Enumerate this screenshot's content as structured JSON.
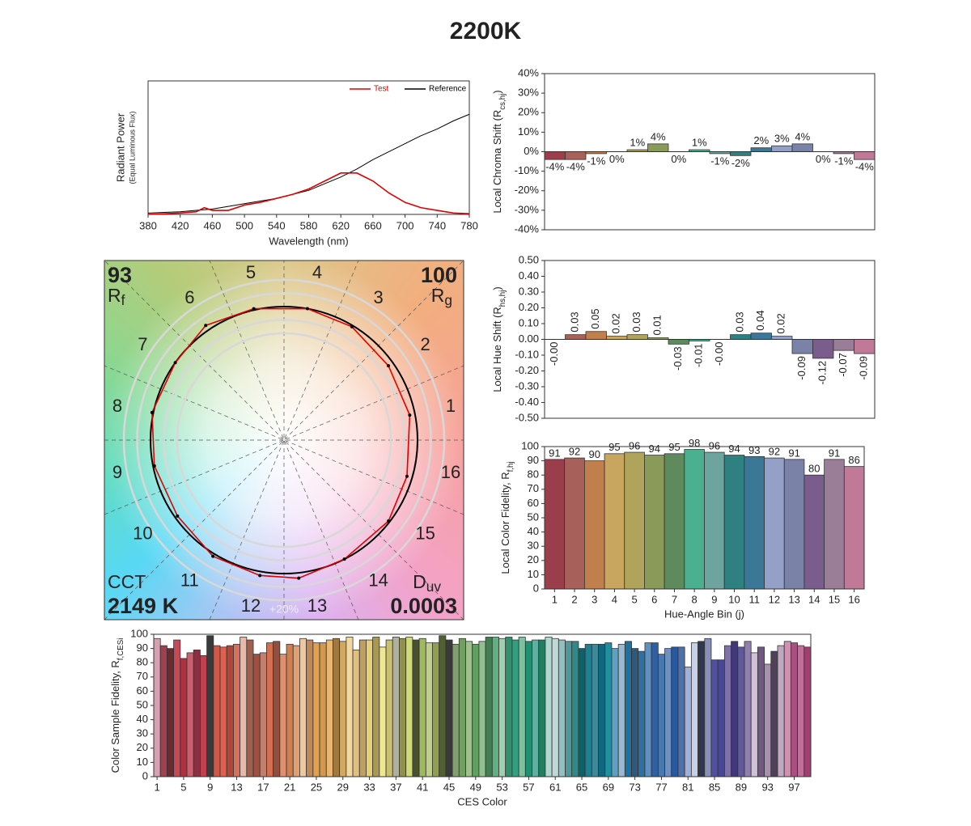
{
  "title": "2200K",
  "chart_data": [
    {
      "type": "line",
      "xlabel": "Wavelength (nm)",
      "ylabel": [
        "Radiant Power",
        "(Equal Luminous Flux)"
      ],
      "x": [
        380,
        400,
        420,
        440,
        450,
        460,
        480,
        500,
        520,
        540,
        560,
        580,
        600,
        620,
        640,
        660,
        680,
        700,
        720,
        740,
        760,
        780
      ],
      "series": [
        {
          "name": "Test",
          "color": "#e00000",
          "values": [
            0.0,
            0.005,
            0.01,
            0.02,
            0.05,
            0.03,
            0.03,
            0.07,
            0.09,
            0.12,
            0.15,
            0.19,
            0.25,
            0.31,
            0.31,
            0.25,
            0.16,
            0.09,
            0.05,
            0.03,
            0.01,
            0.005
          ]
        },
        {
          "name": "Reference",
          "color": "#000000",
          "values": [
            0.01,
            0.015,
            0.02,
            0.03,
            0.035,
            0.04,
            0.06,
            0.08,
            0.1,
            0.12,
            0.15,
            0.18,
            0.23,
            0.28,
            0.34,
            0.41,
            0.47,
            0.53,
            0.59,
            0.64,
            0.7,
            0.75
          ]
        }
      ],
      "xlim": [
        380,
        780
      ],
      "xticks": [
        380,
        420,
        460,
        500,
        540,
        580,
        620,
        660,
        700,
        740,
        780
      ],
      "ylim": [
        0,
        1
      ]
    },
    {
      "type": "bar",
      "ylabel": {
        "text": "Local Chroma Shift (R",
        "sub": "cs,hj",
        "end": ")"
      },
      "values": [
        -4,
        -4,
        -1,
        0,
        1,
        4,
        0,
        1,
        -1,
        -2,
        2,
        3,
        4,
        0,
        -1,
        -4
      ],
      "value_labels": [
        "-4%",
        "-4%",
        "-1%",
        "0%",
        "1%",
        "4%",
        "0%",
        "1%",
        "-1%",
        "-2%",
        "2%",
        "3%",
        "4%",
        "0%",
        "-1%",
        "-4%"
      ],
      "colors": [
        "#9b3e4c",
        "#a8605a",
        "#c07f4c",
        "#c9a65f",
        "#b0a45d",
        "#8a9a58",
        "#5e8a5e",
        "#4bb08f",
        "#6da59e",
        "#2f8080",
        "#3b7898",
        "#95a0c8",
        "#7a82a8",
        "#7a5c8d",
        "#9a7e98",
        "#c07a98"
      ],
      "ylim": [
        -40,
        40
      ],
      "yticks": [
        {
          "value": 40,
          "label": "40%"
        },
        {
          "value": 30,
          "label": "30%"
        },
        {
          "value": 20,
          "label": "20%"
        },
        {
          "value": 10,
          "label": "10%"
        },
        {
          "value": 0,
          "label": "0%"
        },
        {
          "value": -10,
          "label": "-10%"
        },
        {
          "value": -20,
          "label": "-20%"
        },
        {
          "value": -30,
          "label": "-30%"
        },
        {
          "value": -40,
          "label": "-40%"
        }
      ]
    },
    {
      "type": "bar",
      "ylabel": {
        "text": "Local Hue Shift (R",
        "sub": "hs,hj",
        "end": ")"
      },
      "values": [
        0,
        0.03,
        0.05,
        0.02,
        0.03,
        0.01,
        -0.03,
        -0.01,
        0,
        0.03,
        0.04,
        0.02,
        -0.09,
        -0.12,
        -0.07,
        -0.09
      ],
      "value_labels": [
        "-0.00",
        "0.03",
        "0.05",
        "0.02",
        "0.03",
        "0.01",
        "-0.03",
        "-0.01",
        "-0.00",
        "0.03",
        "0.04",
        "0.02",
        "-0.09",
        "-0.12",
        "-0.07",
        "-0.09"
      ],
      "colors": [
        "#9b3e4c",
        "#a8605a",
        "#c07f4c",
        "#c9a65f",
        "#b0a45d",
        "#8a9a58",
        "#5e8a5e",
        "#4bb08f",
        "#6da59e",
        "#2f8080",
        "#3b7898",
        "#95a0c8",
        "#7a82a8",
        "#7a5c8d",
        "#9a7e98",
        "#c07a98"
      ],
      "ylim": [
        -0.5,
        0.5
      ],
      "yticks": [
        {
          "value": 0.5,
          "label": "0.50"
        },
        {
          "value": 0.4,
          "label": "0.40"
        },
        {
          "value": 0.3,
          "label": "0.30"
        },
        {
          "value": 0.2,
          "label": "0.20"
        },
        {
          "value": 0.1,
          "label": "0.10"
        },
        {
          "value": 0,
          "label": "0.00"
        },
        {
          "value": -0.1,
          "label": "-0.10"
        },
        {
          "value": -0.2,
          "label": "-0.20"
        },
        {
          "value": -0.3,
          "label": "-0.30"
        },
        {
          "value": -0.4,
          "label": "-0.40"
        },
        {
          "value": -0.5,
          "label": "-0.50"
        }
      ]
    },
    {
      "type": "bar",
      "xlabel": "Hue-Angle Bin (j)",
      "ylabel": {
        "text": "Local Color Fidelity, R",
        "sub": "f,hj"
      },
      "categories": [
        "1",
        "2",
        "3",
        "4",
        "5",
        "6",
        "7",
        "8",
        "9",
        "10",
        "11",
        "12",
        "13",
        "14",
        "15",
        "16"
      ],
      "values": [
        91,
        92,
        90,
        95,
        96,
        94,
        95,
        98,
        96,
        94,
        93,
        92,
        91,
        80,
        91,
        86
      ],
      "colors": [
        "#9b3e4c",
        "#a8605a",
        "#c07f4c",
        "#c9a65f",
        "#b0a45d",
        "#8a9a58",
        "#5e8a5e",
        "#4bb08f",
        "#6da59e",
        "#2f8080",
        "#3b7898",
        "#95a0c8",
        "#7a82a8",
        "#7a5c8d",
        "#9a7e98",
        "#c07a98"
      ],
      "ylim": [
        0,
        100
      ],
      "yticks": [
        0,
        10,
        20,
        30,
        40,
        50,
        60,
        70,
        80,
        90,
        100
      ]
    },
    {
      "type": "polar",
      "categories": [
        "1",
        "2",
        "3",
        "4",
        "5",
        "6",
        "7",
        "8",
        "9",
        "10",
        "11",
        "12",
        "13",
        "14",
        "15",
        "16"
      ],
      "rf": 93,
      "rf_symbol": "R",
      "rf_sub": "f",
      "rg": 100,
      "rg_symbol": "R",
      "rg_sub": "g",
      "cct_label": "CCT",
      "cct": "2149 K",
      "duv_symbol": "D",
      "duv_sub": "uv",
      "duv": 0.0003,
      "ring_label": "+20%",
      "test_color": "#e00000",
      "reference_color": "#000000"
    },
    {
      "type": "bar",
      "xlabel": "CES Color",
      "ylabel": {
        "text": "Color Sample Fidelity, R",
        "sub": "f,CESi"
      },
      "categories": [
        "1",
        null,
        null,
        null,
        "5",
        null,
        null,
        null,
        "9",
        null,
        null,
        null,
        "13",
        null,
        null,
        null,
        "17",
        null,
        null,
        null,
        "21",
        null,
        null,
        null,
        "25",
        null,
        null,
        null,
        "29",
        null,
        null,
        null,
        "33",
        null,
        null,
        null,
        "37",
        null,
        null,
        null,
        "41",
        null,
        null,
        null,
        "45",
        null,
        null,
        null,
        "49",
        null,
        null,
        null,
        "53",
        null,
        null,
        null,
        "57",
        null,
        null,
        null,
        "61",
        null,
        null,
        null,
        "65",
        null,
        null,
        null,
        "69",
        null,
        null,
        null,
        "73",
        null,
        null,
        null,
        "77",
        null,
        null,
        null,
        "81",
        null,
        null,
        null,
        "85",
        null,
        null,
        null,
        "89",
        null,
        null,
        null,
        "93",
        null,
        null,
        null,
        "97",
        null,
        null
      ],
      "values": [
        97,
        92,
        90,
        96,
        83,
        87,
        89,
        85,
        99,
        92,
        91,
        92,
        93,
        98,
        96,
        86,
        87,
        94,
        95,
        86,
        93,
        92,
        97,
        96,
        94,
        94,
        96,
        97,
        95,
        98,
        89,
        96,
        96,
        98,
        91,
        96,
        98,
        97,
        98,
        96,
        97,
        94,
        94,
        99,
        96,
        93,
        97,
        95,
        93,
        95,
        98,
        98,
        97,
        98,
        96,
        98,
        95,
        96,
        96,
        98,
        97,
        96,
        95,
        95,
        90,
        93,
        93,
        93,
        94,
        90,
        93,
        95,
        90,
        88,
        94,
        94,
        86,
        90,
        91,
        91,
        77,
        94,
        95,
        97,
        82,
        82,
        92,
        95,
        91,
        95,
        87,
        91,
        79,
        88,
        92,
        95,
        94,
        92,
        91
      ],
      "colors": [
        "#d8a0b0",
        "#a04050",
        "#6a2a30",
        "#c84858",
        "#b03040",
        "#c86070",
        "#8a3040",
        "#c04050",
        "#3a3a3a",
        "#d05848",
        "#e06050",
        "#b04838",
        "#d87060",
        "#e8b8a8",
        "#a06050",
        "#a05040",
        "#c08070",
        "#d07050",
        "#905040",
        "#e09070",
        "#d08050",
        "#e0a070",
        "#f0c8a0",
        "#c08858",
        "#e0a050",
        "#d09850",
        "#e8b870",
        "#a07840",
        "#d0a860",
        "#f0d8a0",
        "#e0c080",
        "#c0a060",
        "#e8d078",
        "#a89850",
        "#f0e890",
        "#c8c070",
        "#b0b0a0",
        "#909050",
        "#d0d880",
        "#485030",
        "#a0b860",
        "#c0d088",
        "#90a050",
        "#506030",
        "#3a3a3a",
        "#80a070",
        "#70a060",
        "#a0c090",
        "#60a060",
        "#90c090",
        "#408050",
        "#60b080",
        "#a0d0b0",
        "#309070",
        "#30a080",
        "#80c0a0",
        "#209070",
        "#60b0a0",
        "#208060",
        "#b0d8d0",
        "#c0d8d8",
        "#90c0c0",
        "#509898",
        "#308888",
        "#106068",
        "#208090",
        "#408898",
        "#106880",
        "#2090a0",
        "#60a0c0",
        "#9ab8d0",
        "#2070a0",
        "#305878",
        "#3070a0",
        "#6090c0",
        "#3060a0",
        "#4878b0",
        "#7090c0",
        "#2858a0",
        "#5070a8",
        "#a0b0d8",
        "#c8d0e8",
        "#303850",
        "#8890b8",
        "#5050a0",
        "#484890",
        "#8070a8",
        "#403878",
        "#605898",
        "#9080b0",
        "#d0c0d8",
        "#705880",
        "#a890b0",
        "#504058",
        "#c0a8c0",
        "#d090b0",
        "#a85080",
        "#c07098",
        "#a04070"
      ],
      "ylim": [
        0,
        100
      ],
      "yticks": [
        0,
        10,
        20,
        30,
        40,
        50,
        60,
        70,
        80,
        90,
        100
      ]
    }
  ]
}
